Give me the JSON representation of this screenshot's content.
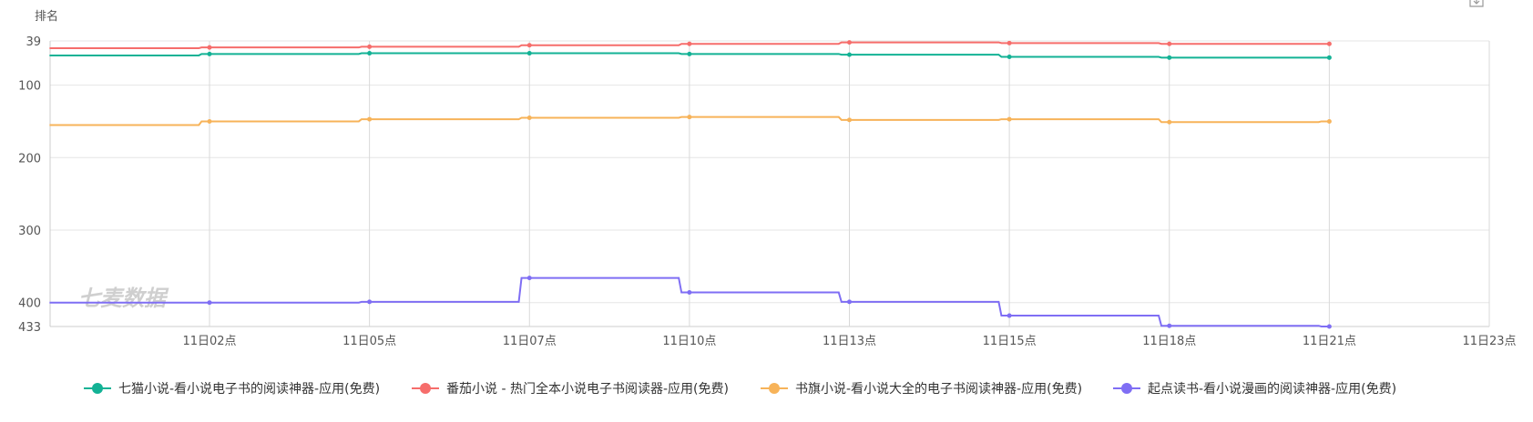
{
  "watermark": "七麦数据",
  "colors": {
    "grid": "#e6e6e6",
    "vline": "#d9d9d9",
    "axis": "#cccccc"
  },
  "chart_data": {
    "type": "line",
    "ylabel": "排名",
    "y_reversed": true,
    "ylim": [
      39,
      433
    ],
    "y_ticks": [
      39,
      100,
      200,
      300,
      400,
      433
    ],
    "x_ticks": [
      "11日02点",
      "11日05点",
      "11日07点",
      "11日10点",
      "11日13点",
      "11日15点",
      "11日18点",
      "11日21点",
      "11日23点"
    ],
    "x_range_hours": [
      0,
      17
    ],
    "legend_position": "bottom",
    "series": [
      {
        "name": "七猫小说-看小说电子书的阅读神器-应用(免费)",
        "color": "#13b295",
        "points": [
          [
            0,
            59
          ],
          [
            3,
            57
          ],
          [
            6,
            56
          ],
          [
            9,
            56
          ],
          [
            12,
            57
          ],
          [
            15,
            58
          ],
          [
            18,
            61
          ],
          [
            21,
            62
          ],
          [
            24,
            62
          ]
        ]
      },
      {
        "name": "番茄小说 - 热门全本小说电子书阅读器-应用(免费)",
        "color": "#f66d6b",
        "points": [
          [
            0,
            49
          ],
          [
            3,
            48
          ],
          [
            6,
            47
          ],
          [
            9,
            45
          ],
          [
            12,
            43
          ],
          [
            15,
            41
          ],
          [
            18,
            42
          ],
          [
            21,
            43
          ],
          [
            24,
            43
          ]
        ]
      },
      {
        "name": "书旗小说-看小说大全的电子书阅读神器-应用(免费)",
        "color": "#f7b359",
        "points": [
          [
            0,
            155
          ],
          [
            3,
            150
          ],
          [
            6,
            147
          ],
          [
            9,
            145
          ],
          [
            12,
            144
          ],
          [
            15,
            148
          ],
          [
            18,
            147
          ],
          [
            21,
            151
          ],
          [
            24,
            150
          ]
        ]
      },
      {
        "name": "起点读书-看小说漫画的阅读神器-应用(免费)",
        "color": "#7f6ef4",
        "points": [
          [
            0,
            400
          ],
          [
            3,
            400
          ],
          [
            6,
            399
          ],
          [
            9,
            366
          ],
          [
            12,
            386
          ],
          [
            15,
            399
          ],
          [
            18,
            418
          ],
          [
            21,
            432
          ],
          [
            24,
            433
          ]
        ]
      }
    ]
  }
}
